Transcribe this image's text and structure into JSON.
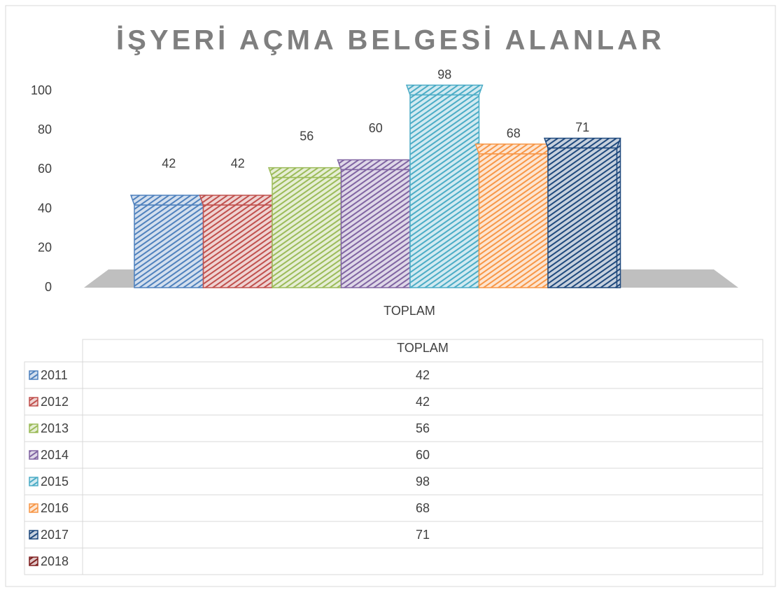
{
  "chart_data": {
    "type": "bar",
    "title": "İŞYERİ AÇMA BELGESİ ALANLAR",
    "categories": [
      "TOPLAM"
    ],
    "series": [
      {
        "name": "2011",
        "color": "#4f81bd",
        "values": [
          42
        ]
      },
      {
        "name": "2012",
        "color": "#c0504d",
        "values": [
          42
        ]
      },
      {
        "name": "2013",
        "color": "#9bbb59",
        "values": [
          56
        ]
      },
      {
        "name": "2014",
        "color": "#8064a2",
        "values": [
          60
        ]
      },
      {
        "name": "2015",
        "color": "#4bacc6",
        "values": [
          98
        ]
      },
      {
        "name": "2016",
        "color": "#f79646",
        "values": [
          68
        ]
      },
      {
        "name": "2017",
        "color": "#1f497d",
        "values": [
          71
        ]
      },
      {
        "name": "2018",
        "color": "#7f1f1f",
        "values": [
          null
        ]
      }
    ],
    "ylim": [
      0,
      100
    ],
    "yticks": [
      0,
      20,
      40,
      60,
      80,
      100
    ],
    "grid": false
  }
}
